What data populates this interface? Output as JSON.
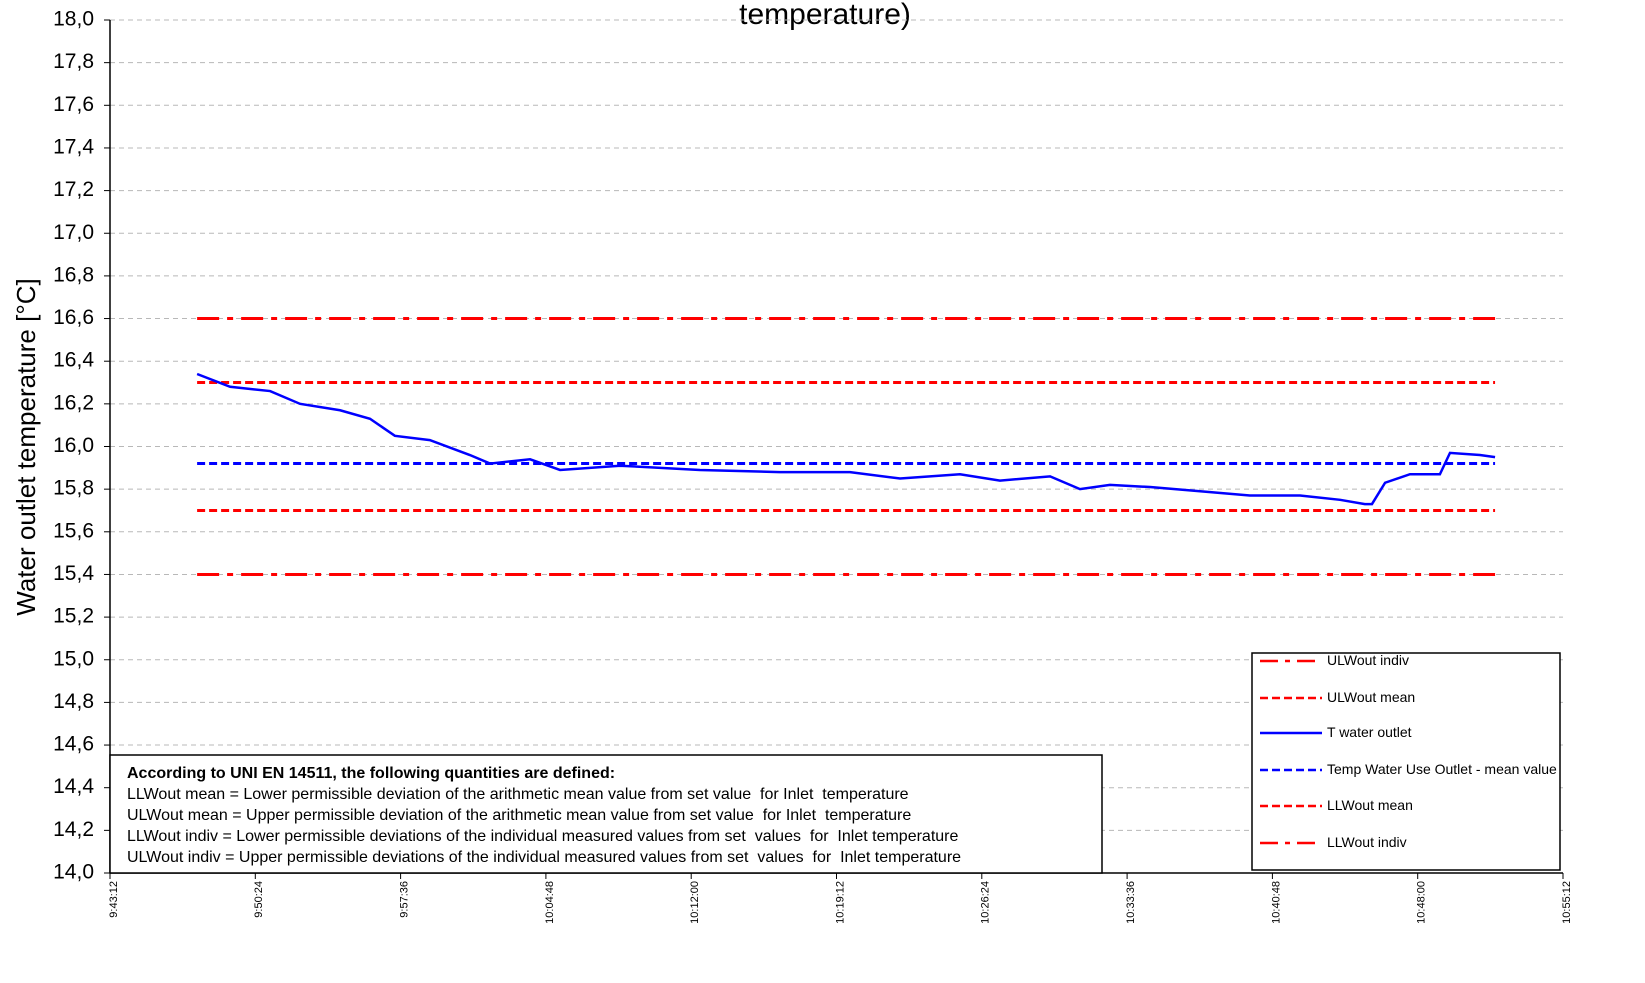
{
  "chart_data": {
    "type": "line",
    "title": "temperature)",
    "y_label": "Water outlet temperature [°C]",
    "xlim": [
      34992,
      39312
    ],
    "xticks": [
      {
        "value": 34992,
        "label": "9:43:12"
      },
      {
        "value": 35424,
        "label": "9:50:24"
      },
      {
        "value": 35856,
        "label": "9:57:36"
      },
      {
        "value": 36288,
        "label": "10:04:48"
      },
      {
        "value": 36720,
        "label": "10:12:00"
      },
      {
        "value": 37152,
        "label": "10:19:12"
      },
      {
        "value": 37584,
        "label": "10:26:24"
      },
      {
        "value": 38016,
        "label": "10:33:36"
      },
      {
        "value": 38448,
        "label": "10:40:48"
      },
      {
        "value": 38880,
        "label": "10:48:00"
      },
      {
        "value": 39312,
        "label": "10:55:12"
      }
    ],
    "ylim": [
      14,
      18
    ],
    "yticks": [
      {
        "value": 14,
        "label": "14,0"
      },
      {
        "value": 14.2,
        "label": "14,2"
      },
      {
        "value": 14.4,
        "label": "14,4"
      },
      {
        "value": 14.6,
        "label": "14,6"
      },
      {
        "value": 14.8,
        "label": "14,8"
      },
      {
        "value": 15,
        "label": "15,0"
      },
      {
        "value": 15.2,
        "label": "15,2"
      },
      {
        "value": 15.4,
        "label": "15,4"
      },
      {
        "value": 15.6,
        "label": "15,6"
      },
      {
        "value": 15.8,
        "label": "15,8"
      },
      {
        "value": 16,
        "label": "16,0"
      },
      {
        "value": 16.2,
        "label": "16,2"
      },
      {
        "value": 16.4,
        "label": "16,4"
      },
      {
        "value": 16.6,
        "label": "16,6"
      },
      {
        "value": 16.8,
        "label": "16,8"
      },
      {
        "value": 17,
        "label": "17,0"
      },
      {
        "value": 17.2,
        "label": "17,2"
      },
      {
        "value": 17.4,
        "label": "17,4"
      },
      {
        "value": 17.6,
        "label": "17,6"
      },
      {
        "value": 17.8,
        "label": "17,8"
      },
      {
        "value": 18,
        "label": "18,0"
      }
    ],
    "grid": true,
    "legend": "lower right",
    "series": [
      {
        "name": "ULWout indiv",
        "color": "#ff0000",
        "dash": "dashdot",
        "x": [
          35251,
          39110
        ],
        "values": [
          16.6,
          16.6
        ]
      },
      {
        "name": "ULWout mean",
        "color": "#ff0000",
        "dash": "dash",
        "x": [
          35251,
          39110
        ],
        "values": [
          16.3,
          16.3
        ]
      },
      {
        "name": "T water outlet",
        "color": "#0000ff",
        "dash": "solid",
        "x": [
          35251,
          35349,
          35468,
          35557,
          35676,
          35765,
          35839,
          35943,
          36062,
          36122,
          36241,
          36330,
          36508,
          36746,
          36984,
          37192,
          37341,
          37519,
          37638,
          37787,
          37876,
          37965,
          38084,
          38233,
          38381,
          38530,
          38649,
          38723,
          38744,
          38783,
          38857,
          38946,
          38976,
          39065,
          39110
        ],
        "values": [
          16.34,
          16.28,
          16.26,
          16.2,
          16.17,
          16.13,
          16.05,
          16.03,
          15.96,
          15.92,
          15.94,
          15.89,
          15.91,
          15.89,
          15.88,
          15.88,
          15.85,
          15.87,
          15.84,
          15.86,
          15.8,
          15.82,
          15.81,
          15.79,
          15.77,
          15.77,
          15.75,
          15.73,
          15.73,
          15.83,
          15.87,
          15.87,
          15.97,
          15.96,
          15.95
        ]
      },
      {
        "name": "Temp Water Use Outlet - mean value",
        "color": "#0000ff",
        "dash": "dash",
        "x": [
          35251,
          39110
        ],
        "values": [
          15.92,
          15.92
        ]
      },
      {
        "name": "LLWout mean",
        "color": "#ff0000",
        "dash": "dash",
        "x": [
          35251,
          39110
        ],
        "values": [
          15.7,
          15.7
        ]
      },
      {
        "name": "LLWout indiv",
        "color": "#ff0000",
        "dash": "dashdot",
        "x": [
          35251,
          39110
        ],
        "values": [
          15.4,
          15.4
        ]
      }
    ],
    "note": {
      "heading": "According  to UNI EN 14511, the following quantities are defined:",
      "lines": [
        "LLWout mean = Lower permissible deviation of the arithmetic mean value from set value  for Inlet  temperature",
        "ULWout mean = Upper permissible deviation of the arithmetic mean value from set value  for Inlet  temperature",
        "LLWout indiv = Lower permissible deviations of the individual measured values from set  values  for  Inlet temperature",
        "ULWout indiv = Upper permissible deviations of the individual measured values from set  values  for  Inlet temperature"
      ]
    }
  }
}
